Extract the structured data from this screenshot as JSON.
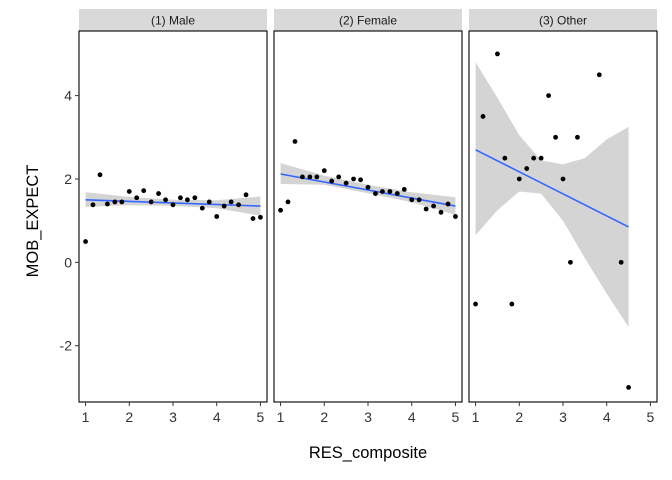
{
  "chart_data": {
    "type": "scatter",
    "xlabel": "RES_composite",
    "ylabel": "MOB_EXPECT",
    "xlim": [
      0.85,
      5.15
    ],
    "ylim": [
      -3.35,
      5.55
    ],
    "x_ticks": [
      1,
      2,
      3,
      4,
      5
    ],
    "y_ticks": [
      -2,
      0,
      2,
      4
    ],
    "x_tick_labels": [
      "1",
      "2",
      "3",
      "4",
      "5"
    ],
    "y_tick_labels": [
      "-2",
      "0",
      "2",
      "4"
    ],
    "grid": false,
    "fit": "linear with confidence band",
    "colors": {
      "strip": "#d9d9d9",
      "band": "#c9c9c9",
      "line": "#3366FF",
      "points": "#000000"
    },
    "panels": [
      {
        "title": "(1) Male",
        "points": [
          [
            1.0,
            0.5
          ],
          [
            1.17,
            1.38
          ],
          [
            1.33,
            2.1
          ],
          [
            1.5,
            1.4
          ],
          [
            1.67,
            1.45
          ],
          [
            1.83,
            1.45
          ],
          [
            2.0,
            1.7
          ],
          [
            2.17,
            1.55
          ],
          [
            2.33,
            1.72
          ],
          [
            2.5,
            1.45
          ],
          [
            2.67,
            1.65
          ],
          [
            2.83,
            1.5
          ],
          [
            3.0,
            1.38
          ],
          [
            3.17,
            1.55
          ],
          [
            3.33,
            1.5
          ],
          [
            3.5,
            1.55
          ],
          [
            3.67,
            1.3
          ],
          [
            3.83,
            1.45
          ],
          [
            4.0,
            1.1
          ],
          [
            4.17,
            1.35
          ],
          [
            4.33,
            1.45
          ],
          [
            4.5,
            1.38
          ],
          [
            4.67,
            1.62
          ],
          [
            4.83,
            1.05
          ],
          [
            5.0,
            1.08
          ]
        ],
        "fit": {
          "x": [
            1.0,
            5.0
          ],
          "y": [
            1.5,
            1.35
          ]
        },
        "band": [
          [
            1.0,
            1.33,
            1.68
          ],
          [
            2.0,
            1.37,
            1.57
          ],
          [
            3.0,
            1.36,
            1.5
          ],
          [
            4.0,
            1.3,
            1.49
          ],
          [
            5.0,
            1.12,
            1.58
          ]
        ]
      },
      {
        "title": "(2) Female",
        "points": [
          [
            1.0,
            1.25
          ],
          [
            1.17,
            1.45
          ],
          [
            1.33,
            2.9
          ],
          [
            1.5,
            2.05
          ],
          [
            1.67,
            2.05
          ],
          [
            1.83,
            2.05
          ],
          [
            2.0,
            2.2
          ],
          [
            2.17,
            1.95
          ],
          [
            2.33,
            2.05
          ],
          [
            2.5,
            1.9
          ],
          [
            2.67,
            2.0
          ],
          [
            2.83,
            1.98
          ],
          [
            3.0,
            1.8
          ],
          [
            3.17,
            1.65
          ],
          [
            3.33,
            1.7
          ],
          [
            3.5,
            1.7
          ],
          [
            3.67,
            1.65
          ],
          [
            3.83,
            1.75
          ],
          [
            4.0,
            1.5
          ],
          [
            4.17,
            1.5
          ],
          [
            4.33,
            1.28
          ],
          [
            4.5,
            1.35
          ],
          [
            4.67,
            1.2
          ],
          [
            4.83,
            1.4
          ],
          [
            5.0,
            1.1
          ]
        ],
        "fit": {
          "x": [
            1.0,
            5.0
          ],
          "y": [
            2.12,
            1.35
          ]
        },
        "band": [
          [
            1.0,
            1.88,
            2.38
          ],
          [
            2.0,
            1.86,
            2.08
          ],
          [
            3.0,
            1.66,
            1.86
          ],
          [
            4.0,
            1.44,
            1.68
          ],
          [
            5.0,
            1.14,
            1.56
          ]
        ]
      },
      {
        "title": "(3) Other",
        "points": [
          [
            1.0,
            -1.0
          ],
          [
            1.17,
            3.5
          ],
          [
            1.5,
            5.0
          ],
          [
            1.67,
            2.5
          ],
          [
            1.83,
            -1.0
          ],
          [
            2.0,
            2.0
          ],
          [
            2.17,
            2.25
          ],
          [
            2.33,
            2.5
          ],
          [
            2.5,
            2.5
          ],
          [
            2.67,
            4.0
          ],
          [
            2.83,
            3.0
          ],
          [
            3.0,
            2.0
          ],
          [
            3.17,
            0.0
          ],
          [
            3.33,
            3.0
          ],
          [
            3.83,
            4.5
          ],
          [
            4.33,
            0.0
          ],
          [
            4.5,
            -3.0
          ]
        ],
        "fit": {
          "x": [
            1.0,
            4.5
          ],
          "y": [
            2.7,
            0.85
          ]
        },
        "band": [
          [
            1.0,
            0.65,
            4.8
          ],
          [
            1.5,
            1.25,
            3.95
          ],
          [
            2.0,
            1.7,
            3.05
          ],
          [
            2.5,
            1.65,
            2.45
          ],
          [
            3.0,
            1.0,
            2.35
          ],
          [
            3.5,
            0.1,
            2.5
          ],
          [
            4.0,
            -0.75,
            2.95
          ],
          [
            4.5,
            -1.55,
            3.25
          ]
        ]
      }
    ]
  }
}
